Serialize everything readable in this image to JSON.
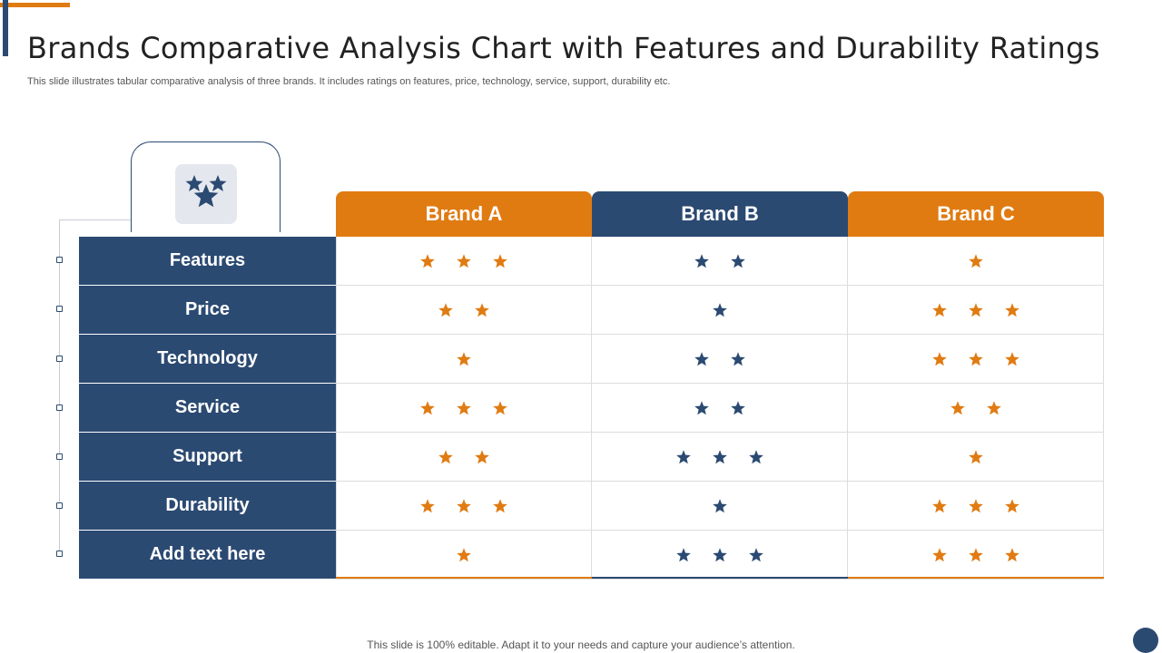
{
  "title": "Brands Comparative Analysis Chart with Features and Durability Ratings",
  "subtitle": "This slide illustrates tabular comparative analysis of three brands. It includes ratings on features, price, technology, service, support, durability etc.",
  "footer": "This slide is 100% editable. Adapt it to your needs and capture your audience’s attention.",
  "colors": {
    "orange": "#E07B12",
    "navy": "#2B4A72"
  },
  "header_icon": "stars-icon",
  "brands": [
    {
      "name": "Brand A",
      "color": "#E07B12"
    },
    {
      "name": "Brand B",
      "color": "#2B4A72"
    },
    {
      "name": "Brand C",
      "color": "#E07B12"
    }
  ],
  "rows": [
    {
      "label": "Features",
      "ratings": [
        3,
        2,
        1
      ]
    },
    {
      "label": "Price",
      "ratings": [
        2,
        1,
        3
      ]
    },
    {
      "label": "Technology",
      "ratings": [
        1,
        2,
        3
      ]
    },
    {
      "label": "Service",
      "ratings": [
        3,
        2,
        2
      ]
    },
    {
      "label": "Support",
      "ratings": [
        2,
        3,
        1
      ]
    },
    {
      "label": "Durability",
      "ratings": [
        3,
        1,
        3
      ]
    },
    {
      "label": "Add text here",
      "ratings": [
        1,
        3,
        3
      ]
    }
  ]
}
